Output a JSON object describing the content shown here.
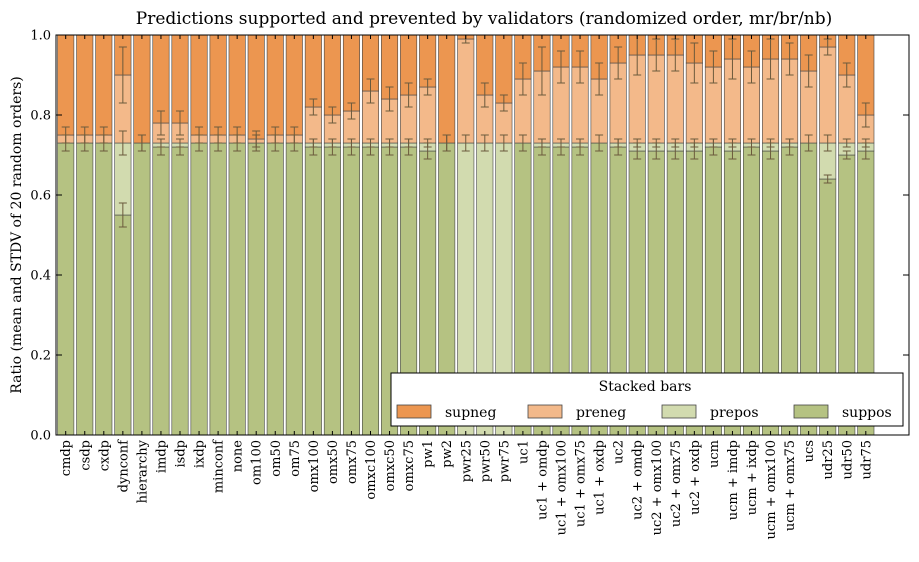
{
  "chart_data": {
    "type": "bar",
    "stacked": true,
    "title": "Predictions supported and prevented by validators (randomized order, mr/br/nb)",
    "xlabel": "",
    "ylabel": "Ratio (mean and STDV of 20 random orders)",
    "ylim": [
      0.0,
      1.0
    ],
    "yticks": [
      "0.0",
      "0.2",
      "0.4",
      "0.6",
      "0.8",
      "1.0"
    ],
    "grid": false,
    "legend": {
      "title": "Stacked bars",
      "placement": "bottom-right",
      "entries": [
        "supneg",
        "preneg",
        "prepos",
        "suppos"
      ]
    },
    "colors": {
      "suppos": "#b5c282",
      "prepos": "#d2dbaf",
      "preneg": "#f3b98a",
      "supneg": "#ec9650",
      "edge": "#444444",
      "error": "#6b5a3c"
    },
    "categories": [
      "cmdp",
      "csdp",
      "cxdp",
      "dynconf",
      "hierarchy",
      "imdp",
      "isdp",
      "ixdp",
      "minconf",
      "none",
      "om100",
      "om50",
      "om75",
      "omx100",
      "omx50",
      "omx75",
      "omxc100",
      "omxc50",
      "omxc75",
      "pw1",
      "pw2",
      "pwr25",
      "pwr50",
      "pwr75",
      "uc1",
      "uc1 + omdp",
      "uc1 + omx100",
      "uc1 + omx75",
      "uc1 + oxdp",
      "uc2",
      "uc2 + omdp",
      "uc2 + omx100",
      "uc2 + omx75",
      "uc2 + oxdp",
      "ucm",
      "ucm + imdp",
      "ucm + ixdp",
      "ucm + omx100",
      "ucm + omx75",
      "ucs",
      "udr25",
      "udr50",
      "udr75"
    ],
    "series": [
      {
        "name": "suppos",
        "values": [
          0.73,
          0.73,
          0.73,
          0.55,
          0.73,
          0.72,
          0.72,
          0.73,
          0.73,
          0.73,
          0.73,
          0.73,
          0.73,
          0.72,
          0.72,
          0.72,
          0.72,
          0.72,
          0.72,
          0.71,
          0.73,
          0.0,
          0.0,
          0.0,
          0.73,
          0.72,
          0.72,
          0.72,
          0.73,
          0.72,
          0.71,
          0.71,
          0.71,
          0.71,
          0.72,
          0.71,
          0.72,
          0.71,
          0.72,
          0.73,
          0.64,
          0.7,
          0.71
        ]
      },
      {
        "name": "prepos",
        "values": [
          0.0,
          0.0,
          0.0,
          0.18,
          0.0,
          0.01,
          0.01,
          0.0,
          0.0,
          0.0,
          0.0,
          0.0,
          0.0,
          0.01,
          0.01,
          0.01,
          0.01,
          0.01,
          0.01,
          0.02,
          0.0,
          0.73,
          0.73,
          0.73,
          0.0,
          0.01,
          0.01,
          0.01,
          0.0,
          0.01,
          0.02,
          0.02,
          0.02,
          0.02,
          0.01,
          0.02,
          0.01,
          0.02,
          0.01,
          0.0,
          0.09,
          0.03,
          0.02
        ]
      },
      {
        "name": "preneg",
        "values": [
          0.02,
          0.02,
          0.02,
          0.17,
          0.0,
          0.05,
          0.05,
          0.02,
          0.02,
          0.02,
          0.01,
          0.02,
          0.02,
          0.09,
          0.07,
          0.08,
          0.13,
          0.11,
          0.12,
          0.14,
          0.0,
          0.26,
          0.12,
          0.1,
          0.16,
          0.18,
          0.19,
          0.19,
          0.16,
          0.2,
          0.22,
          0.22,
          0.22,
          0.2,
          0.19,
          0.21,
          0.19,
          0.21,
          0.21,
          0.18,
          0.24,
          0.17,
          0.07
        ]
      },
      {
        "name": "supneg",
        "values": [
          0.25,
          0.25,
          0.25,
          0.1,
          0.27,
          0.22,
          0.22,
          0.25,
          0.25,
          0.25,
          0.26,
          0.25,
          0.25,
          0.18,
          0.2,
          0.19,
          0.14,
          0.16,
          0.15,
          0.13,
          0.27,
          0.01,
          0.15,
          0.17,
          0.11,
          0.09,
          0.08,
          0.08,
          0.11,
          0.07,
          0.05,
          0.05,
          0.05,
          0.07,
          0.08,
          0.06,
          0.08,
          0.06,
          0.06,
          0.09,
          0.03,
          0.1,
          0.2
        ]
      }
    ],
    "error_bars": {
      "suppos": [
        0.02,
        0.02,
        0.02,
        0.03,
        0.02,
        0.02,
        0.02,
        0.02,
        0.02,
        0.02,
        0.02,
        0.02,
        0.02,
        0.02,
        0.02,
        0.02,
        0.02,
        0.02,
        0.02,
        0.02,
        0.02,
        0.0,
        0.0,
        0.0,
        0.02,
        0.02,
        0.02,
        0.02,
        0.02,
        0.02,
        0.02,
        0.02,
        0.02,
        0.02,
        0.02,
        0.02,
        0.02,
        0.02,
        0.02,
        0.02,
        0.01,
        0.01,
        0.02
      ],
      "prepos": [
        0.0,
        0.0,
        0.0,
        0.03,
        0.0,
        0.01,
        0.01,
        0.0,
        0.0,
        0.0,
        0.0,
        0.0,
        0.0,
        0.01,
        0.01,
        0.01,
        0.01,
        0.01,
        0.01,
        0.01,
        0.0,
        0.02,
        0.02,
        0.02,
        0.0,
        0.01,
        0.01,
        0.01,
        0.0,
        0.01,
        0.01,
        0.01,
        0.01,
        0.01,
        0.01,
        0.01,
        0.01,
        0.01,
        0.01,
        0.0,
        0.02,
        0.01,
        0.01
      ],
      "preneg": [
        0.02,
        0.02,
        0.02,
        0.07,
        0.02,
        0.03,
        0.03,
        0.02,
        0.02,
        0.02,
        0.02,
        0.02,
        0.02,
        0.02,
        0.02,
        0.02,
        0.03,
        0.03,
        0.03,
        0.02,
        0.02,
        0.01,
        0.03,
        0.02,
        0.04,
        0.06,
        0.04,
        0.04,
        0.04,
        0.04,
        0.05,
        0.04,
        0.04,
        0.05,
        0.04,
        0.05,
        0.04,
        0.05,
        0.04,
        0.04,
        0.02,
        0.03,
        0.03
      ]
    }
  }
}
